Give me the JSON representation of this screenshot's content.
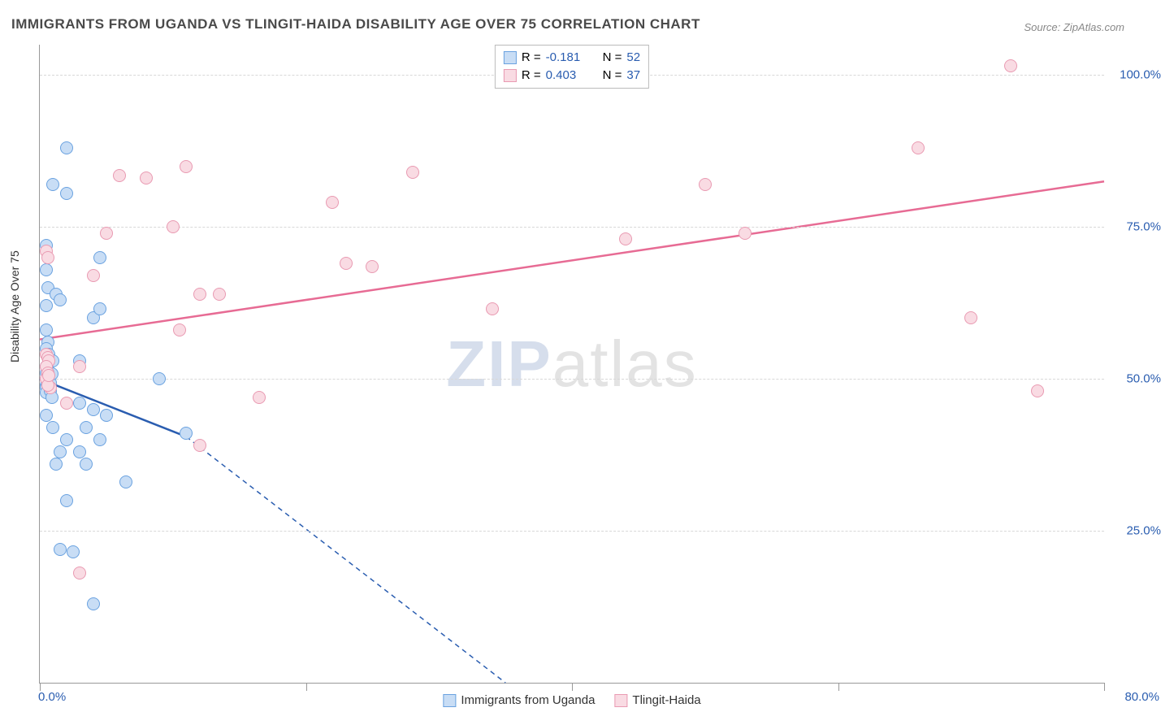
{
  "title": "IMMIGRANTS FROM UGANDA VS TLINGIT-HAIDA DISABILITY AGE OVER 75 CORRELATION CHART",
  "source": "Source: ZipAtlas.com",
  "watermark_bold": "ZIP",
  "watermark_rest": "atlas",
  "chart": {
    "type": "scatter",
    "x_axis": {
      "min": 0.0,
      "max": 80.0,
      "ticks": [
        0.0,
        20.0,
        40.0,
        60.0,
        80.0
      ],
      "labels": [
        "0.0%",
        "",
        "",
        "",
        "80.0%"
      ],
      "label_color": "#2a5db0",
      "label_fontsize": 15
    },
    "y_axis": {
      "title": "Disability Age Over 75",
      "min": 0.0,
      "max": 105.0,
      "gridlines": [
        25.0,
        50.0,
        75.0,
        100.0
      ],
      "labels": [
        "25.0%",
        "50.0%",
        "75.0%",
        "100.0%"
      ],
      "label_color": "#2a5db0",
      "label_fontsize": 15,
      "grid_color": "#d8d8d8"
    },
    "background_color": "#ffffff",
    "plot_border_color": "#999999",
    "series": [
      {
        "name": "Immigrants from Uganda",
        "marker_fill": "#c8ddf5",
        "marker_stroke": "#6aa2e0",
        "marker_radius": 8,
        "trend": {
          "solid_from": [
            0.0,
            50.0
          ],
          "solid_to": [
            11.0,
            40.5
          ],
          "dashed_to": [
            35.0,
            0.0
          ],
          "color": "#2a5db0",
          "width": 2.5,
          "dash": "6,5"
        },
        "R": "-0.181",
        "N": "52",
        "points": [
          [
            2.0,
            88.0
          ],
          [
            1.0,
            82.0
          ],
          [
            2.0,
            80.5
          ],
          [
            0.5,
            72.0
          ],
          [
            4.5,
            70.0
          ],
          [
            0.5,
            68.0
          ],
          [
            0.6,
            65.0
          ],
          [
            1.2,
            64.0
          ],
          [
            1.5,
            63.0
          ],
          [
            0.5,
            62.0
          ],
          [
            4.0,
            60.0
          ],
          [
            4.5,
            61.5
          ],
          [
            0.5,
            58.0
          ],
          [
            0.6,
            56.0
          ],
          [
            0.5,
            55.0
          ],
          [
            0.7,
            54.0
          ],
          [
            1.0,
            53.0
          ],
          [
            3.0,
            53.0
          ],
          [
            0.5,
            52.0
          ],
          [
            0.6,
            51.5
          ],
          [
            0.5,
            51.0
          ],
          [
            0.6,
            50.5
          ],
          [
            9.0,
            50.0
          ],
          [
            0.5,
            50.0
          ],
          [
            0.7,
            49.5
          ],
          [
            0.5,
            49.0
          ],
          [
            0.6,
            50.2
          ],
          [
            0.5,
            48.5
          ],
          [
            0.8,
            49.3
          ],
          [
            0.9,
            50.8
          ],
          [
            0.5,
            47.8
          ],
          [
            0.6,
            51.0
          ],
          [
            3.0,
            46.0
          ],
          [
            4.0,
            45.0
          ],
          [
            0.5,
            44.0
          ],
          [
            5.0,
            44.0
          ],
          [
            1.0,
            42.0
          ],
          [
            3.5,
            42.0
          ],
          [
            11.0,
            41.0
          ],
          [
            2.0,
            40.0
          ],
          [
            4.5,
            40.0
          ],
          [
            1.5,
            38.0
          ],
          [
            3.0,
            38.0
          ],
          [
            1.2,
            36.0
          ],
          [
            3.5,
            36.0
          ],
          [
            6.5,
            33.0
          ],
          [
            2.0,
            30.0
          ],
          [
            1.5,
            22.0
          ],
          [
            2.5,
            21.5
          ],
          [
            4.0,
            13.0
          ],
          [
            0.8,
            48.0
          ],
          [
            0.9,
            47.0
          ]
        ]
      },
      {
        "name": "Tlingit-Haida",
        "marker_fill": "#f9dbe3",
        "marker_stroke": "#e99ab2",
        "marker_radius": 8,
        "trend": {
          "solid_from": [
            0.0,
            56.5
          ],
          "solid_to": [
            80.0,
            82.5
          ],
          "color": "#e76b94",
          "width": 2.5
        },
        "R": "0.403",
        "N": "37",
        "points": [
          [
            73.0,
            101.5
          ],
          [
            66.0,
            88.0
          ],
          [
            11.0,
            85.0
          ],
          [
            28.0,
            84.0
          ],
          [
            6.0,
            83.5
          ],
          [
            8.0,
            83.0
          ],
          [
            50.0,
            82.0
          ],
          [
            22.0,
            79.0
          ],
          [
            10.0,
            75.0
          ],
          [
            5.0,
            74.0
          ],
          [
            53.0,
            74.0
          ],
          [
            44.0,
            73.0
          ],
          [
            0.5,
            71.0
          ],
          [
            0.6,
            70.0
          ],
          [
            23.0,
            69.0
          ],
          [
            25.0,
            68.5
          ],
          [
            4.0,
            67.0
          ],
          [
            12.0,
            64.0
          ],
          [
            13.5,
            64.0
          ],
          [
            34.0,
            61.5
          ],
          [
            70.0,
            60.0
          ],
          [
            10.5,
            58.0
          ],
          [
            0.5,
            54.0
          ],
          [
            0.6,
            53.5
          ],
          [
            0.7,
            53.0
          ],
          [
            0.5,
            52.0
          ],
          [
            3.0,
            52.0
          ],
          [
            0.6,
            51.0
          ],
          [
            0.5,
            50.0
          ],
          [
            75.0,
            48.0
          ],
          [
            16.5,
            47.0
          ],
          [
            0.8,
            48.5
          ],
          [
            2.0,
            46.0
          ],
          [
            12.0,
            39.0
          ],
          [
            3.0,
            18.0
          ],
          [
            0.6,
            49.0
          ],
          [
            0.7,
            50.5
          ]
        ]
      }
    ],
    "legend_top": {
      "border_color": "#bbbbbb",
      "r_label": "R =",
      "n_label": "N =",
      "value_color": "#2a5db0"
    }
  }
}
